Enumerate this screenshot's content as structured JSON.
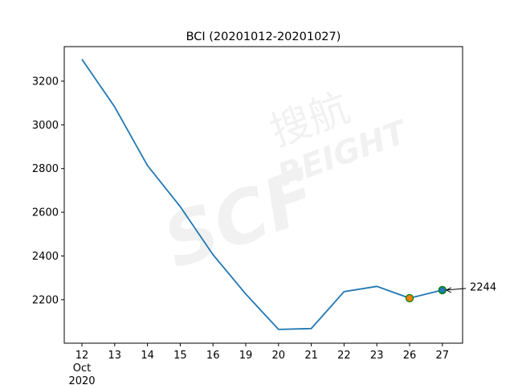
{
  "chart_data": {
    "type": "line",
    "title": "BCI (20201012-20201027)",
    "xlabel": "",
    "ylabel": "",
    "categories": [
      "12",
      "13",
      "14",
      "15",
      "16",
      "19",
      "20",
      "21",
      "22",
      "23",
      "26",
      "27"
    ],
    "x_sublabels": [
      "Oct",
      "2020"
    ],
    "dates": [
      "2020-10-12",
      "2020-10-13",
      "2020-10-14",
      "2020-10-15",
      "2020-10-16",
      "2020-10-19",
      "2020-10-20",
      "2020-10-21",
      "2020-10-22",
      "2020-10-23",
      "2020-10-26",
      "2020-10-27"
    ],
    "series": [
      {
        "values": [
          3300,
          3082,
          2814,
          2626,
          2406,
          2226,
          2064,
          2068,
          2237,
          2261,
          2207,
          2244
        ],
        "color": "#1f77b4"
      }
    ],
    "markers": [
      {
        "category": "26",
        "value": 2207,
        "fill": "#ff7f0e",
        "edge": "#008000"
      },
      {
        "category": "27",
        "value": 2244,
        "fill": "#1f77b4",
        "edge": "#008000"
      }
    ],
    "annotation": {
      "category": "27",
      "value": 2244,
      "text": "2244"
    },
    "yticks": [
      2200,
      2400,
      2600,
      2800,
      3000,
      3200
    ],
    "ytick_labels": [
      "2200",
      "2400",
      "2600",
      "2800",
      "3000",
      "3200"
    ],
    "ylim": [
      2001,
      3358
    ],
    "grid": false,
    "watermark": "SCF 搜航 FREIGHT"
  }
}
